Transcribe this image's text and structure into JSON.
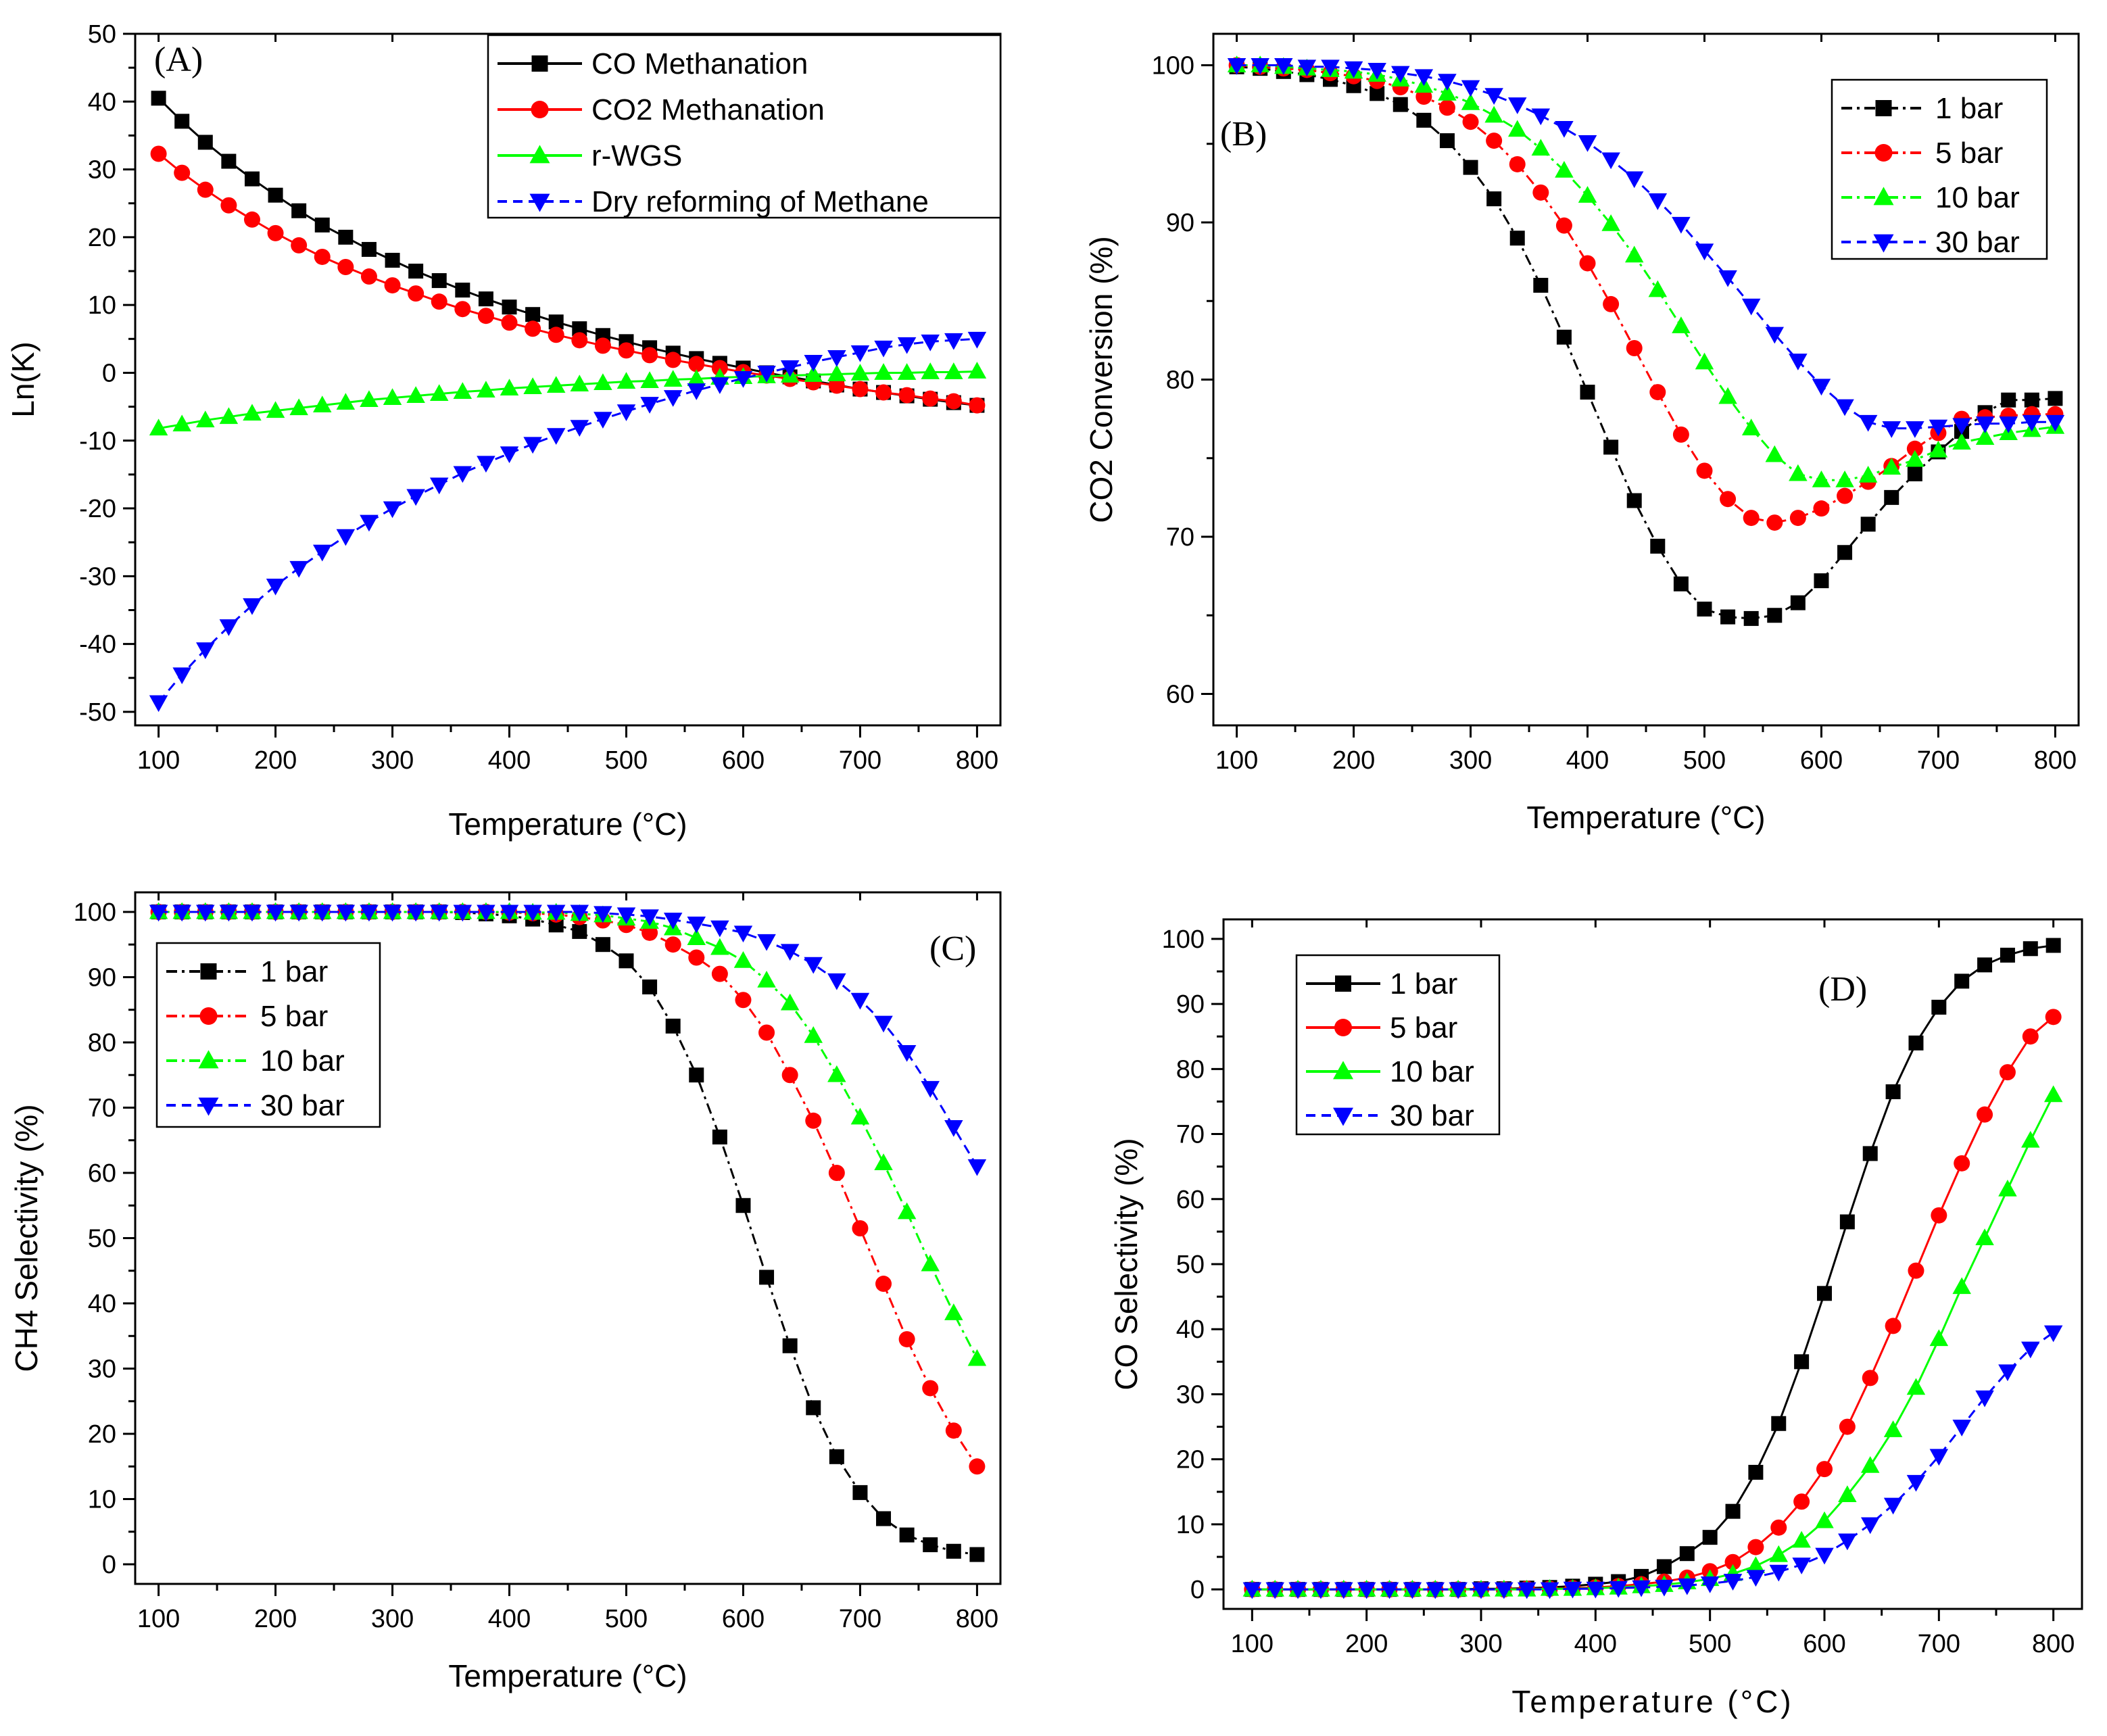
{
  "chart_data": [
    {
      "id": "A",
      "type": "line",
      "panel_label": "(A)",
      "xlabel": "Temperature (°C)",
      "ylabel": "Ln(K)",
      "xlim": [
        80,
        820
      ],
      "ylim": [
        -52,
        50
      ],
      "xticks": [
        100,
        200,
        300,
        400,
        500,
        600,
        700,
        800
      ],
      "yticks": [
        -50,
        -40,
        -30,
        -20,
        -10,
        0,
        10,
        20,
        30,
        40,
        50
      ],
      "legend_position": "top-right",
      "x": [
        100,
        120,
        140,
        160,
        180,
        200,
        220,
        240,
        260,
        280,
        300,
        320,
        340,
        360,
        380,
        400,
        420,
        440,
        460,
        480,
        500,
        520,
        540,
        560,
        580,
        600,
        620,
        640,
        660,
        680,
        700,
        720,
        740,
        760,
        780,
        800
      ],
      "series": [
        {
          "name": "CO Methanation",
          "color": "#000000",
          "marker": "square",
          "dash": "solid",
          "values": [
            40.5,
            37.1,
            34.0,
            31.2,
            28.6,
            26.2,
            23.9,
            21.8,
            20.0,
            18.2,
            16.6,
            15.0,
            13.6,
            12.2,
            10.9,
            9.7,
            8.6,
            7.5,
            6.5,
            5.5,
            4.6,
            3.7,
            2.9,
            2.1,
            1.4,
            0.7,
            0.0,
            -0.6,
            -1.2,
            -1.8,
            -2.4,
            -2.9,
            -3.4,
            -3.9,
            -4.4,
            -4.8
          ]
        },
        {
          "name": "CO2 Methanation",
          "color": "#ff0000",
          "marker": "circle",
          "dash": "solid",
          "values": [
            32.3,
            29.5,
            27.0,
            24.7,
            22.6,
            20.6,
            18.8,
            17.1,
            15.6,
            14.2,
            12.9,
            11.7,
            10.5,
            9.4,
            8.4,
            7.4,
            6.5,
            5.6,
            4.8,
            4.0,
            3.3,
            2.6,
            1.9,
            1.3,
            0.7,
            0.1,
            -0.4,
            -0.9,
            -1.4,
            -1.9,
            -2.4,
            -2.9,
            -3.3,
            -3.8,
            -4.2,
            -4.8
          ]
        },
        {
          "name": "r-WGS",
          "color": "#00ff00",
          "marker": "triangle-up",
          "dash": "solid",
          "values": [
            -8.2,
            -7.6,
            -7.0,
            -6.5,
            -6.0,
            -5.6,
            -5.2,
            -4.8,
            -4.4,
            -4.0,
            -3.7,
            -3.4,
            -3.1,
            -2.8,
            -2.6,
            -2.3,
            -2.1,
            -1.9,
            -1.7,
            -1.5,
            -1.3,
            -1.2,
            -1.0,
            -0.9,
            -0.7,
            -0.6,
            -0.5,
            -0.4,
            -0.3,
            -0.2,
            -0.1,
            0.0,
            0.0,
            0.1,
            0.1,
            0.2
          ]
        },
        {
          "name": "Dry reforming of Methane",
          "color": "#0000ff",
          "marker": "triangle-down",
          "dash": "dash",
          "values": [
            -48.6,
            -44.5,
            -40.8,
            -37.4,
            -34.3,
            -31.4,
            -28.8,
            -26.4,
            -24.1,
            -22.0,
            -20.0,
            -18.2,
            -16.5,
            -14.8,
            -13.3,
            -11.9,
            -10.5,
            -9.2,
            -8.0,
            -6.8,
            -5.7,
            -4.6,
            -3.6,
            -2.6,
            -1.7,
            -0.8,
            0.0,
            0.8,
            1.6,
            2.3,
            3.0,
            3.7,
            4.2,
            4.6,
            4.8,
            5.0
          ]
        }
      ]
    },
    {
      "id": "B",
      "type": "line",
      "panel_label": "(B)",
      "xlabel": "Temperature (°C)",
      "ylabel": "CO2 Conversion (%)",
      "xlim": [
        80,
        820
      ],
      "ylim": [
        58,
        102
      ],
      "xticks": [
        100,
        200,
        300,
        400,
        500,
        600,
        700,
        800
      ],
      "yticks": [
        60,
        70,
        80,
        90,
        100
      ],
      "legend_position": "top-right",
      "x": [
        100,
        120,
        140,
        160,
        180,
        200,
        220,
        240,
        260,
        280,
        300,
        320,
        340,
        360,
        380,
        400,
        420,
        440,
        460,
        480,
        500,
        520,
        540,
        560,
        580,
        600,
        620,
        640,
        660,
        680,
        700,
        720,
        740,
        760,
        780,
        800
      ],
      "series": [
        {
          "name": "1 bar",
          "color": "#000000",
          "marker": "square",
          "dash": "dashdot",
          "values": [
            99.9,
            99.8,
            99.6,
            99.4,
            99.1,
            98.7,
            98.2,
            97.5,
            96.5,
            95.2,
            93.5,
            91.5,
            89.0,
            86.0,
            82.7,
            79.2,
            75.7,
            72.3,
            69.4,
            67.0,
            65.4,
            64.9,
            64.8,
            65.0,
            65.8,
            67.2,
            69.0,
            70.8,
            72.5,
            74.0,
            75.4,
            76.7,
            77.9,
            78.7,
            78.7,
            78.8
          ]
        },
        {
          "name": "5 bar",
          "color": "#ff0000",
          "marker": "circle",
          "dash": "dashdot",
          "values": [
            100.0,
            99.9,
            99.8,
            99.7,
            99.5,
            99.3,
            99.0,
            98.6,
            98.0,
            97.3,
            96.4,
            95.2,
            93.7,
            91.9,
            89.8,
            87.4,
            84.8,
            82.0,
            79.2,
            76.5,
            74.2,
            72.4,
            71.2,
            70.9,
            71.2,
            71.8,
            72.6,
            73.5,
            74.5,
            75.6,
            76.6,
            77.5,
            77.6,
            77.7,
            77.8,
            77.8
          ]
        },
        {
          "name": "10 bar",
          "color": "#00ff00",
          "marker": "triangle-up",
          "dash": "dashdot",
          "values": [
            100.0,
            100.0,
            99.9,
            99.8,
            99.7,
            99.6,
            99.4,
            99.1,
            98.7,
            98.2,
            97.6,
            96.8,
            95.9,
            94.7,
            93.3,
            91.7,
            89.9,
            87.9,
            85.7,
            83.4,
            81.1,
            78.9,
            76.9,
            75.2,
            74.0,
            73.6,
            73.6,
            73.9,
            74.4,
            74.9,
            75.5,
            76.0,
            76.3,
            76.6,
            76.8,
            77.0
          ]
        },
        {
          "name": "30 bar",
          "color": "#0000ff",
          "marker": "triangle-down",
          "dash": "dash",
          "values": [
            100.0,
            100.0,
            100.0,
            99.9,
            99.9,
            99.8,
            99.7,
            99.5,
            99.3,
            99.0,
            98.6,
            98.1,
            97.5,
            96.8,
            96.0,
            95.1,
            94.0,
            92.8,
            91.4,
            89.9,
            88.2,
            86.5,
            84.7,
            82.9,
            81.2,
            79.6,
            78.3,
            77.3,
            76.9,
            76.9,
            77.0,
            77.1,
            77.2,
            77.2,
            77.3,
            77.3
          ]
        }
      ]
    },
    {
      "id": "C",
      "type": "line",
      "panel_label": "(C)",
      "xlabel": "Temperature (°C)",
      "ylabel": "CH4 Selectivity (%)",
      "xlim": [
        80,
        820
      ],
      "ylim": [
        -3,
        103
      ],
      "xticks": [
        100,
        200,
        300,
        400,
        500,
        600,
        700,
        800
      ],
      "yticks": [
        0,
        10,
        20,
        30,
        40,
        50,
        60,
        70,
        80,
        90,
        100
      ],
      "legend_position": "top-left",
      "x": [
        100,
        120,
        140,
        160,
        180,
        200,
        220,
        240,
        260,
        280,
        300,
        320,
        340,
        360,
        380,
        400,
        420,
        440,
        460,
        480,
        500,
        520,
        540,
        560,
        580,
        600,
        620,
        640,
        660,
        680,
        700,
        720,
        740,
        760,
        780,
        800
      ],
      "series": [
        {
          "name": "1 bar",
          "color": "#000000",
          "marker": "square",
          "dash": "dashdot",
          "values": [
            100,
            100,
            100,
            100,
            100,
            100,
            100,
            100,
            100,
            100,
            100,
            100,
            100,
            99.9,
            99.7,
            99.4,
            98.9,
            98.0,
            97.0,
            95.0,
            92.5,
            88.5,
            82.5,
            75.0,
            65.5,
            55.0,
            44.0,
            33.5,
            24.0,
            16.5,
            11.0,
            7.0,
            4.5,
            3.0,
            2.0,
            1.5
          ]
        },
        {
          "name": "5 bar",
          "color": "#ff0000",
          "marker": "circle",
          "dash": "dashdot",
          "values": [
            100,
            100,
            100,
            100,
            100,
            100,
            100,
            100,
            100,
            100,
            100,
            100,
            100,
            100,
            100,
            99.9,
            99.8,
            99.6,
            99.2,
            98.7,
            98.0,
            96.8,
            95.0,
            93.0,
            90.5,
            86.5,
            81.5,
            75.0,
            68.0,
            60.0,
            51.5,
            43.0,
            34.5,
            27.0,
            20.5,
            15.0
          ]
        },
        {
          "name": "10 bar",
          "color": "#00ff00",
          "marker": "triangle-up",
          "dash": "dashdot",
          "values": [
            100,
            100,
            100,
            100,
            100,
            100,
            100,
            100,
            100,
            100,
            100,
            100,
            100,
            100,
            100,
            100,
            99.9,
            99.9,
            99.7,
            99.5,
            99.0,
            98.5,
            97.5,
            96.0,
            94.5,
            92.5,
            89.5,
            86.0,
            81.0,
            75.0,
            68.5,
            61.5,
            54.0,
            46.0,
            38.5,
            31.5
          ]
        },
        {
          "name": "30 bar",
          "color": "#0000ff",
          "marker": "triangle-down",
          "dash": "dash",
          "values": [
            100,
            100,
            100,
            100,
            100,
            100,
            100,
            100,
            100,
            100,
            100,
            100,
            100,
            100,
            100,
            100,
            100,
            100,
            100,
            99.8,
            99.6,
            99.3,
            98.8,
            98.2,
            97.6,
            96.8,
            95.5,
            94.0,
            92.0,
            89.5,
            86.5,
            83.0,
            78.5,
            73.0,
            67.0,
            61.0
          ]
        }
      ]
    },
    {
      "id": "D",
      "type": "line",
      "panel_label": "(D)",
      "xlabel": "Temperature (°C)",
      "ylabel": "CO Selectivity (%)",
      "xlim": [
        75,
        825
      ],
      "ylim": [
        -3,
        103
      ],
      "xticks": [
        100,
        200,
        300,
        400,
        500,
        600,
        700,
        800
      ],
      "yticks": [
        0,
        10,
        20,
        30,
        40,
        50,
        60,
        70,
        80,
        90,
        100
      ],
      "legend_position": "top-left",
      "x": [
        100,
        120,
        140,
        160,
        180,
        200,
        220,
        240,
        260,
        280,
        300,
        320,
        340,
        360,
        380,
        400,
        420,
        440,
        460,
        480,
        500,
        520,
        540,
        560,
        580,
        600,
        620,
        640,
        660,
        680,
        700,
        720,
        740,
        760,
        780,
        800
      ],
      "series": [
        {
          "name": "1 bar",
          "color": "#000000",
          "marker": "square",
          "dash": "solid",
          "values": [
            0,
            0,
            0,
            0,
            0,
            0,
            0,
            0,
            0,
            0,
            0.1,
            0.1,
            0.2,
            0.3,
            0.5,
            0.8,
            1.2,
            2.0,
            3.5,
            5.5,
            8.0,
            12.0,
            18.0,
            25.5,
            35.0,
            45.5,
            56.5,
            67.0,
            76.5,
            84.0,
            89.5,
            93.5,
            96.0,
            97.5,
            98.5,
            99.0
          ]
        },
        {
          "name": "5 bar",
          "color": "#ff0000",
          "marker": "circle",
          "dash": "solid",
          "values": [
            0,
            0,
            0,
            0,
            0,
            0,
            0,
            0,
            0,
            0,
            0,
            0,
            0.1,
            0.1,
            0.2,
            0.3,
            0.5,
            0.8,
            1.2,
            1.8,
            2.8,
            4.2,
            6.5,
            9.5,
            13.5,
            18.5,
            25.0,
            32.5,
            40.5,
            49.0,
            57.5,
            65.5,
            73.0,
            79.5,
            85.0,
            88.0
          ]
        },
        {
          "name": "10 bar",
          "color": "#00ff00",
          "marker": "triangle-up",
          "dash": "solid",
          "values": [
            0,
            0,
            0,
            0,
            0,
            0,
            0,
            0,
            0,
            0,
            0,
            0,
            0,
            0.1,
            0.1,
            0.2,
            0.3,
            0.5,
            0.7,
            1.1,
            1.6,
            2.4,
            3.6,
            5.3,
            7.5,
            10.5,
            14.5,
            19.0,
            24.5,
            31.0,
            38.5,
            46.5,
            54.0,
            61.5,
            69.0,
            76.0
          ]
        },
        {
          "name": "30 bar",
          "color": "#0000ff",
          "marker": "triangle-down",
          "dash": "dash",
          "values": [
            0,
            0,
            0,
            0,
            0,
            0,
            0,
            0,
            0,
            0,
            0,
            0,
            0,
            0,
            0.1,
            0.1,
            0.2,
            0.3,
            0.4,
            0.6,
            0.9,
            1.3,
            1.9,
            2.7,
            3.8,
            5.3,
            7.5,
            10.0,
            13.0,
            16.5,
            20.5,
            25.0,
            29.5,
            33.5,
            37.0,
            39.5
          ]
        }
      ]
    }
  ]
}
